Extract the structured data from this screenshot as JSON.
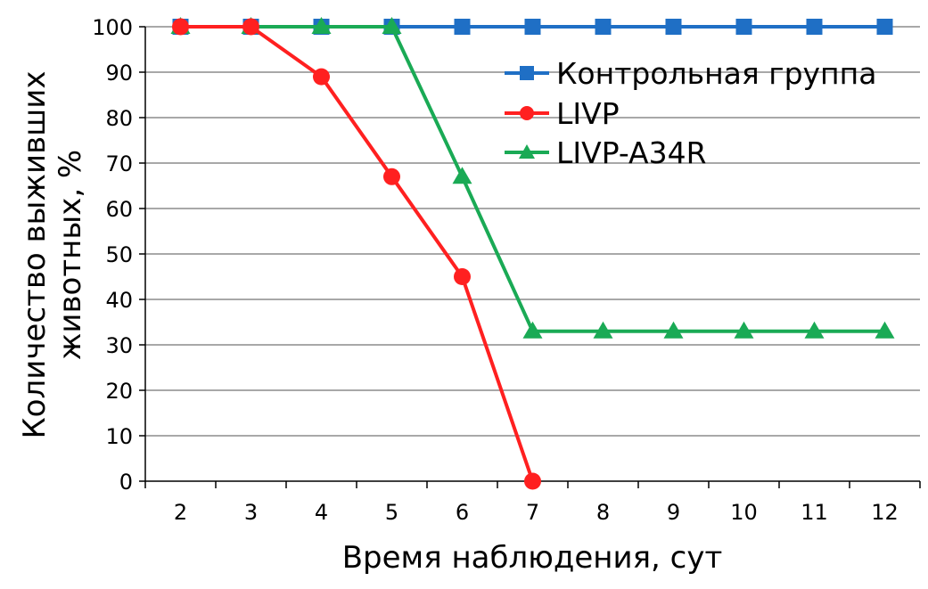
{
  "chart_data": {
    "type": "line",
    "title": "",
    "xlabel": "Время наблюдения, сут",
    "ylabel_lines": [
      "Количество выживших",
      "животных, %"
    ],
    "categories": [
      2,
      3,
      4,
      5,
      6,
      7,
      8,
      9,
      10,
      11,
      12
    ],
    "ylim": [
      0,
      100
    ],
    "yticks": [
      0,
      10,
      20,
      30,
      40,
      50,
      60,
      70,
      80,
      90,
      100
    ],
    "grid": true,
    "legend_position": "top-right",
    "series": [
      {
        "name": "Контрольная группа",
        "color": "#1F6FC5",
        "marker": "square",
        "values": [
          100,
          100,
          100,
          100,
          100,
          100,
          100,
          100,
          100,
          100,
          100
        ]
      },
      {
        "name": "LIVP",
        "color": "#FF2020",
        "marker": "circle",
        "values": [
          100,
          100,
          89,
          67,
          45,
          0,
          null,
          null,
          null,
          null,
          null
        ]
      },
      {
        "name": "LIVP-A34R",
        "color": "#1AAA55",
        "marker": "triangle",
        "values": [
          100,
          100,
          100,
          100,
          67,
          33,
          33,
          33,
          33,
          33,
          33
        ]
      }
    ]
  }
}
